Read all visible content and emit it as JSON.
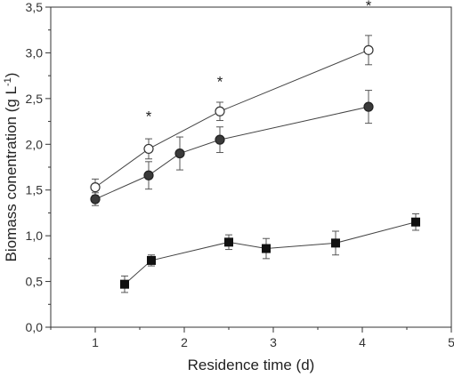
{
  "chart_data": {
    "type": "scatter",
    "xlabel": "Residence time (d)",
    "ylabel_main": "Biomass conentration (g L",
    "ylabel_sup": "-1",
    "ylabel_close": ")",
    "xlim": [
      0.5,
      5.0
    ],
    "ylim": [
      0.0,
      3.5
    ],
    "x_ticks": [
      1,
      2,
      3,
      4,
      5
    ],
    "x_tick_labels": [
      "1",
      "2",
      "3",
      "4",
      "5"
    ],
    "y_ticks": [
      0.0,
      0.5,
      1.0,
      1.5,
      2.0,
      2.5,
      3.0,
      3.5
    ],
    "y_tick_labels": [
      "0,0",
      "0,5",
      "1,0",
      "1,5",
      "2,0",
      "2,5",
      "3,0",
      "3,5"
    ],
    "grid": false,
    "legend": "none",
    "series": [
      {
        "marker": "open-circle",
        "color": "#ffffff",
        "stroke": "#333333",
        "line": true,
        "points": [
          {
            "x": 1.0,
            "y": 1.53,
            "err": 0.09
          },
          {
            "x": 1.6,
            "y": 1.95,
            "err": 0.11
          },
          {
            "x": 2.4,
            "y": 2.36,
            "err": 0.1
          },
          {
            "x": 4.07,
            "y": 3.03,
            "err": 0.16
          }
        ]
      },
      {
        "marker": "filled-circle",
        "color": "#3a3a3a",
        "stroke": "#222222",
        "line": true,
        "points": [
          {
            "x": 1.0,
            "y": 1.4,
            "err": 0.07
          },
          {
            "x": 1.6,
            "y": 1.66,
            "err": 0.15
          },
          {
            "x": 1.95,
            "y": 1.9,
            "err": 0.18
          },
          {
            "x": 2.4,
            "y": 2.05,
            "err": 0.14
          },
          {
            "x": 4.07,
            "y": 2.41,
            "err": 0.18
          }
        ]
      },
      {
        "marker": "filled-square",
        "color": "#111111",
        "stroke": "#111111",
        "line": true,
        "points": [
          {
            "x": 1.33,
            "y": 0.47,
            "err": 0.09
          },
          {
            "x": 1.63,
            "y": 0.73,
            "err": 0.06
          },
          {
            "x": 2.5,
            "y": 0.93,
            "err": 0.08
          },
          {
            "x": 2.92,
            "y": 0.86,
            "err": 0.11
          },
          {
            "x": 3.7,
            "y": 0.92,
            "err": 0.13
          },
          {
            "x": 4.6,
            "y": 1.15,
            "err": 0.09
          }
        ]
      }
    ],
    "annotations": [
      {
        "text": "*",
        "x": 1.6,
        "y": 2.25
      },
      {
        "text": "*",
        "x": 2.4,
        "y": 2.63
      },
      {
        "text": "*",
        "x": 4.07,
        "y": 3.46
      }
    ]
  }
}
